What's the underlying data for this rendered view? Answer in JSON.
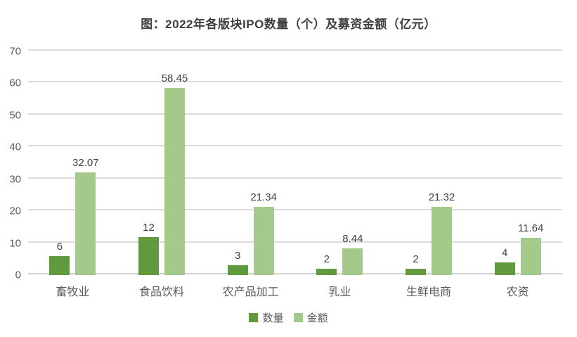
{
  "page": {
    "background": "#ffffff"
  },
  "chart_data": {
    "type": "bar",
    "title": "图：2022年各版块IPO数量（个）及募资金额（亿元）",
    "categories": [
      "畜牧业",
      "食品饮料",
      "农产品加工",
      "乳业",
      "生鲜电商",
      "农资"
    ],
    "series": [
      {
        "name": "数量",
        "color": "#61993e",
        "values": [
          6,
          12,
          3,
          2,
          2,
          4
        ]
      },
      {
        "name": "金额",
        "color": "#a3c98b",
        "values": [
          32.07,
          58.45,
          21.34,
          8.44,
          21.32,
          11.64
        ]
      }
    ],
    "xlabel": "",
    "ylabel": "",
    "ylim": [
      0,
      70
    ],
    "yticks": [
      0,
      10,
      20,
      30,
      40,
      50,
      60,
      70
    ],
    "grid": true,
    "legend_position": "bottom",
    "data_labels": true
  },
  "colors": {
    "quantity_series": "#61993e",
    "amount_series": "#a3c98b",
    "gridline": "#dcdcdc",
    "axis_line": "#d0d0d0",
    "title_text": "#3f3f3f",
    "tick_text": "#595959",
    "value_label_text": "#404040",
    "category_text": "#595959",
    "legend_text": "#595959"
  }
}
